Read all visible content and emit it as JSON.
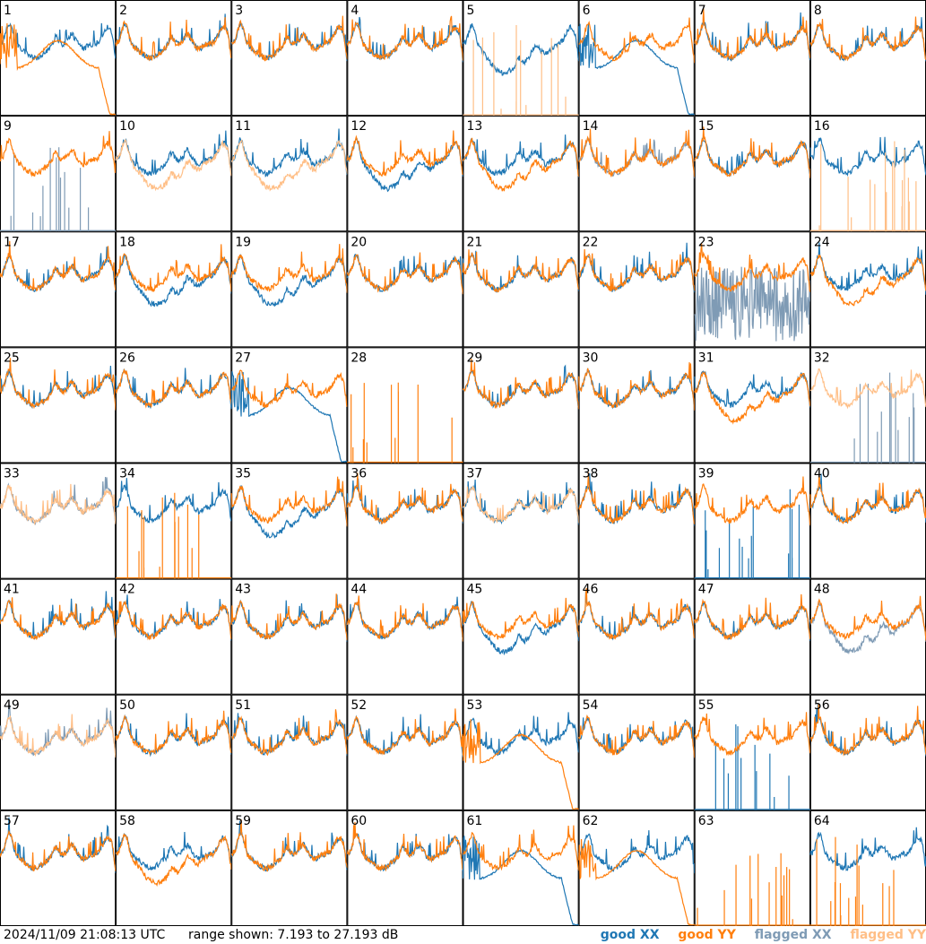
{
  "footer": {
    "timestamp": "2024/11/09 21:08:13 UTC",
    "range_text": "range shown: 7.193 to 27.193 dB",
    "legend": [
      {
        "label": "good XX",
        "color": "#1f77b4"
      },
      {
        "label": "good YY",
        "color": "#ff7f0e"
      },
      {
        "label": "flagged XX",
        "color": "#7f9bb5"
      },
      {
        "label": "flagged YY",
        "color": "#ffbf87"
      }
    ]
  },
  "chart_data": {
    "type": "line",
    "grid": "8x8 small multiples",
    "ylim": [
      7.193,
      27.193
    ],
    "yunit": "dB",
    "tiles": [
      {
        "id": "1",
        "xx": "good",
        "yy": "good",
        "shape_xx": "normal",
        "shape_yy": "droop"
      },
      {
        "id": "2",
        "xx": "good",
        "yy": "good",
        "shape_xx": "normal",
        "shape_yy": "normal"
      },
      {
        "id": "3",
        "xx": "good",
        "yy": "good",
        "shape_xx": "normal",
        "shape_yy": "normal"
      },
      {
        "id": "4",
        "xx": "good",
        "yy": "good",
        "shape_xx": "normal",
        "shape_yy": "normal"
      },
      {
        "id": "5",
        "xx": "good",
        "yy": "flagged",
        "shape_xx": "dip",
        "shape_yy": "spikes"
      },
      {
        "id": "6",
        "xx": "good",
        "yy": "good",
        "shape_xx": "droop",
        "shape_yy": "normal"
      },
      {
        "id": "7",
        "xx": "good",
        "yy": "good",
        "shape_xx": "normal",
        "shape_yy": "normal"
      },
      {
        "id": "8",
        "xx": "good",
        "yy": "good",
        "shape_xx": "normal",
        "shape_yy": "normal"
      },
      {
        "id": "9",
        "xx": "flagged",
        "yy": "good",
        "shape_xx": "spikes",
        "shape_yy": "normal"
      },
      {
        "id": "10",
        "xx": "good",
        "yy": "flagged",
        "shape_xx": "normal",
        "shape_yy": "dip"
      },
      {
        "id": "11",
        "xx": "good",
        "yy": "flagged",
        "shape_xx": "normal",
        "shape_yy": "dip"
      },
      {
        "id": "12",
        "xx": "good",
        "yy": "good",
        "shape_xx": "dip",
        "shape_yy": "normal"
      },
      {
        "id": "13",
        "xx": "good",
        "yy": "good",
        "shape_xx": "normal",
        "shape_yy": "dip"
      },
      {
        "id": "14",
        "xx": "flagged",
        "yy": "good",
        "shape_xx": "normal",
        "shape_yy": "normal"
      },
      {
        "id": "15",
        "xx": "good",
        "yy": "good",
        "shape_xx": "normal",
        "shape_yy": "normal"
      },
      {
        "id": "16",
        "xx": "good",
        "yy": "flagged",
        "shape_xx": "normal",
        "shape_yy": "spikes"
      },
      {
        "id": "17",
        "xx": "good",
        "yy": "good",
        "shape_xx": "normal",
        "shape_yy": "normal"
      },
      {
        "id": "18",
        "xx": "good",
        "yy": "good",
        "shape_xx": "dip",
        "shape_yy": "normal"
      },
      {
        "id": "19",
        "xx": "good",
        "yy": "good",
        "shape_xx": "dip",
        "shape_yy": "normal"
      },
      {
        "id": "20",
        "xx": "good",
        "yy": "good",
        "shape_xx": "normal",
        "shape_yy": "normal"
      },
      {
        "id": "21",
        "xx": "good",
        "yy": "good",
        "shape_xx": "normal",
        "shape_yy": "normal"
      },
      {
        "id": "22",
        "xx": "good",
        "yy": "good",
        "shape_xx": "normal",
        "shape_yy": "normal"
      },
      {
        "id": "23",
        "xx": "flagged",
        "yy": "good",
        "shape_xx": "noisy",
        "shape_yy": "normal"
      },
      {
        "id": "24",
        "xx": "good",
        "yy": "good",
        "shape_xx": "normal",
        "shape_yy": "dip"
      },
      {
        "id": "25",
        "xx": "good",
        "yy": "good",
        "shape_xx": "normal",
        "shape_yy": "normal"
      },
      {
        "id": "26",
        "xx": "good",
        "yy": "good",
        "shape_xx": "normal",
        "shape_yy": "normal"
      },
      {
        "id": "27",
        "xx": "good",
        "yy": "good",
        "shape_xx": "droop",
        "shape_yy": "normal"
      },
      {
        "id": "28",
        "xx": "none",
        "yy": "good",
        "shape_xx": "none",
        "shape_yy": "spikes"
      },
      {
        "id": "29",
        "xx": "good",
        "yy": "good",
        "shape_xx": "normal",
        "shape_yy": "normal"
      },
      {
        "id": "30",
        "xx": "good",
        "yy": "good",
        "shape_xx": "normal",
        "shape_yy": "normal"
      },
      {
        "id": "31",
        "xx": "good",
        "yy": "good",
        "shape_xx": "normal",
        "shape_yy": "dip"
      },
      {
        "id": "32",
        "xx": "flagged",
        "yy": "flagged",
        "shape_xx": "spikes",
        "shape_yy": "normal"
      },
      {
        "id": "33",
        "xx": "flagged",
        "yy": "flagged",
        "shape_xx": "normal",
        "shape_yy": "normal"
      },
      {
        "id": "34",
        "xx": "good",
        "yy": "good",
        "shape_xx": "normal",
        "shape_yy": "spikes"
      },
      {
        "id": "35",
        "xx": "good",
        "yy": "good",
        "shape_xx": "dip",
        "shape_yy": "normal"
      },
      {
        "id": "36",
        "xx": "good",
        "yy": "good",
        "shape_xx": "normal",
        "shape_yy": "normal"
      },
      {
        "id": "37",
        "xx": "good",
        "yy": "flagged",
        "shape_xx": "normal",
        "shape_yy": "normal"
      },
      {
        "id": "38",
        "xx": "good",
        "yy": "good",
        "shape_xx": "normal",
        "shape_yy": "normal"
      },
      {
        "id": "39",
        "xx": "good",
        "yy": "good",
        "shape_xx": "spikes",
        "shape_yy": "normal"
      },
      {
        "id": "40",
        "xx": "good",
        "yy": "good",
        "shape_xx": "normal",
        "shape_yy": "normal"
      },
      {
        "id": "41",
        "xx": "good",
        "yy": "good",
        "shape_xx": "normal",
        "shape_yy": "normal"
      },
      {
        "id": "42",
        "xx": "good",
        "yy": "good",
        "shape_xx": "normal",
        "shape_yy": "normal"
      },
      {
        "id": "43",
        "xx": "good",
        "yy": "good",
        "shape_xx": "normal",
        "shape_yy": "normal"
      },
      {
        "id": "44",
        "xx": "good",
        "yy": "good",
        "shape_xx": "normal",
        "shape_yy": "normal"
      },
      {
        "id": "45",
        "xx": "good",
        "yy": "good",
        "shape_xx": "dip",
        "shape_yy": "normal"
      },
      {
        "id": "46",
        "xx": "good",
        "yy": "good",
        "shape_xx": "normal",
        "shape_yy": "normal"
      },
      {
        "id": "47",
        "xx": "good",
        "yy": "good",
        "shape_xx": "normal",
        "shape_yy": "normal"
      },
      {
        "id": "48",
        "xx": "flagged",
        "yy": "good",
        "shape_xx": "dip",
        "shape_yy": "normal"
      },
      {
        "id": "49",
        "xx": "flagged",
        "yy": "flagged",
        "shape_xx": "normal",
        "shape_yy": "normal"
      },
      {
        "id": "50",
        "xx": "good",
        "yy": "good",
        "shape_xx": "normal",
        "shape_yy": "normal"
      },
      {
        "id": "51",
        "xx": "good",
        "yy": "good",
        "shape_xx": "normal",
        "shape_yy": "normal"
      },
      {
        "id": "52",
        "xx": "good",
        "yy": "good",
        "shape_xx": "normal",
        "shape_yy": "normal"
      },
      {
        "id": "53",
        "xx": "good",
        "yy": "good",
        "shape_xx": "normal",
        "shape_yy": "droop"
      },
      {
        "id": "54",
        "xx": "good",
        "yy": "good",
        "shape_xx": "normal",
        "shape_yy": "normal"
      },
      {
        "id": "55",
        "xx": "good",
        "yy": "good",
        "shape_xx": "spikes",
        "shape_yy": "normal"
      },
      {
        "id": "56",
        "xx": "good",
        "yy": "good",
        "shape_xx": "normal",
        "shape_yy": "normal"
      },
      {
        "id": "57",
        "xx": "good",
        "yy": "good",
        "shape_xx": "normal",
        "shape_yy": "normal"
      },
      {
        "id": "58",
        "xx": "good",
        "yy": "good",
        "shape_xx": "normal",
        "shape_yy": "dip"
      },
      {
        "id": "59",
        "xx": "good",
        "yy": "good",
        "shape_xx": "normal",
        "shape_yy": "normal"
      },
      {
        "id": "60",
        "xx": "good",
        "yy": "good",
        "shape_xx": "normal",
        "shape_yy": "normal"
      },
      {
        "id": "61",
        "xx": "good",
        "yy": "good",
        "shape_xx": "droop",
        "shape_yy": "normal"
      },
      {
        "id": "62",
        "xx": "good",
        "yy": "good",
        "shape_xx": "normal",
        "shape_yy": "droop"
      },
      {
        "id": "63",
        "xx": "none",
        "yy": "good",
        "shape_xx": "none",
        "shape_yy": "spikes"
      },
      {
        "id": "64",
        "xx": "good",
        "yy": "good",
        "shape_xx": "normal",
        "shape_yy": "spikes"
      }
    ]
  }
}
